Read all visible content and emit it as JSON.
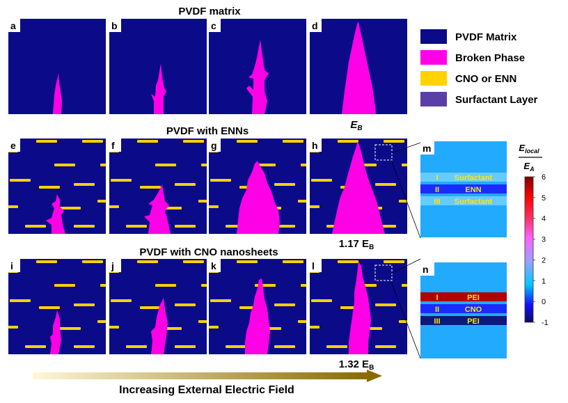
{
  "row_titles": [
    "PVDF matrix",
    "PVDF with ENNs",
    "PVDF with CNO nanosheets"
  ],
  "panel_letters": {
    "row1": [
      "a",
      "b",
      "c",
      "d"
    ],
    "row2": [
      "e",
      "f",
      "g",
      "h"
    ],
    "row3": [
      "i",
      "j",
      "k",
      "l"
    ],
    "insets": [
      "m",
      "n"
    ]
  },
  "field_labels": {
    "eb": {
      "main": "E",
      "sub": "B"
    },
    "enn": {
      "main": "1.17 E",
      "sub": "B"
    },
    "cno": {
      "main": "1.32 E",
      "sub": "B"
    }
  },
  "legend": {
    "items": [
      {
        "label": "PVDF Matrix",
        "color": "#0b0b8a"
      },
      {
        "label": "Broken Phase",
        "color": "#ff00e6"
      },
      {
        "label": "CNO or ENN",
        "color": "#ffd200"
      },
      {
        "label": "Surfactant Layer",
        "color": "#5a3fa6"
      }
    ]
  },
  "inset_m": {
    "layers": [
      {
        "numeral": "I",
        "label": "Surfactant",
        "color": "#66ccff"
      },
      {
        "numeral": "II",
        "label": "ENN",
        "color": "#1a2bff"
      },
      {
        "numeral": "III",
        "label": "Surfactant",
        "color": "#66ccff"
      }
    ],
    "background": "#22aaff"
  },
  "inset_n": {
    "layers": [
      {
        "numeral": "I",
        "label": "PEI",
        "color": "#b00000"
      },
      {
        "numeral": "II",
        "label": "CNO",
        "color": "#1a2bff"
      },
      {
        "numeral": "III",
        "label": "PEI",
        "color": "#0a1a7a"
      }
    ],
    "background": "#22aaff"
  },
  "colorbar": {
    "title_top": {
      "main": "E",
      "sub": "local"
    },
    "title_bottom": {
      "main": "E",
      "sub": "A"
    },
    "ticks": [
      "6",
      "5",
      "4",
      "3",
      "2",
      "1",
      "0",
      "-1"
    ],
    "range": [
      -1,
      6
    ]
  },
  "arrow_label": "Increasing External Electric Field",
  "colors": {
    "matrix": "#0b0b8a",
    "broken": "#ff00e6",
    "filler": "#ffd200",
    "arrow_start": "#fff8d8",
    "arrow_end": "#8a6a00"
  }
}
